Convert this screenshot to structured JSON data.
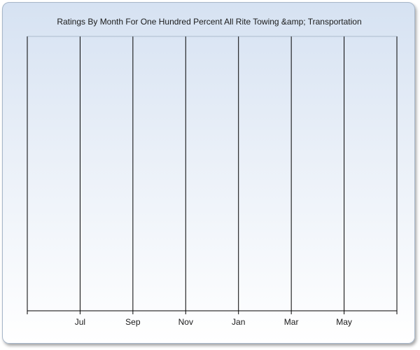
{
  "chart_data": {
    "type": "bar",
    "title": "Ratings By Month For One Hundred Percent All Rite Towing &amp; Transportation",
    "xlabel": "",
    "ylabel": "",
    "categories": [
      "Jul",
      "Sep",
      "Nov",
      "Jan",
      "Mar",
      "May"
    ],
    "x_tick_labels": [
      "Jul",
      "Sep",
      "Nov",
      "Jan",
      "Mar",
      "May"
    ],
    "series": [
      {
        "values": [
          null,
          null,
          null,
          null,
          null,
          null
        ]
      }
    ],
    "grid": "vertical",
    "colors": {
      "background_top": "#d6e2f2",
      "background_bottom": "#ffffff",
      "lines": "#000000"
    }
  }
}
